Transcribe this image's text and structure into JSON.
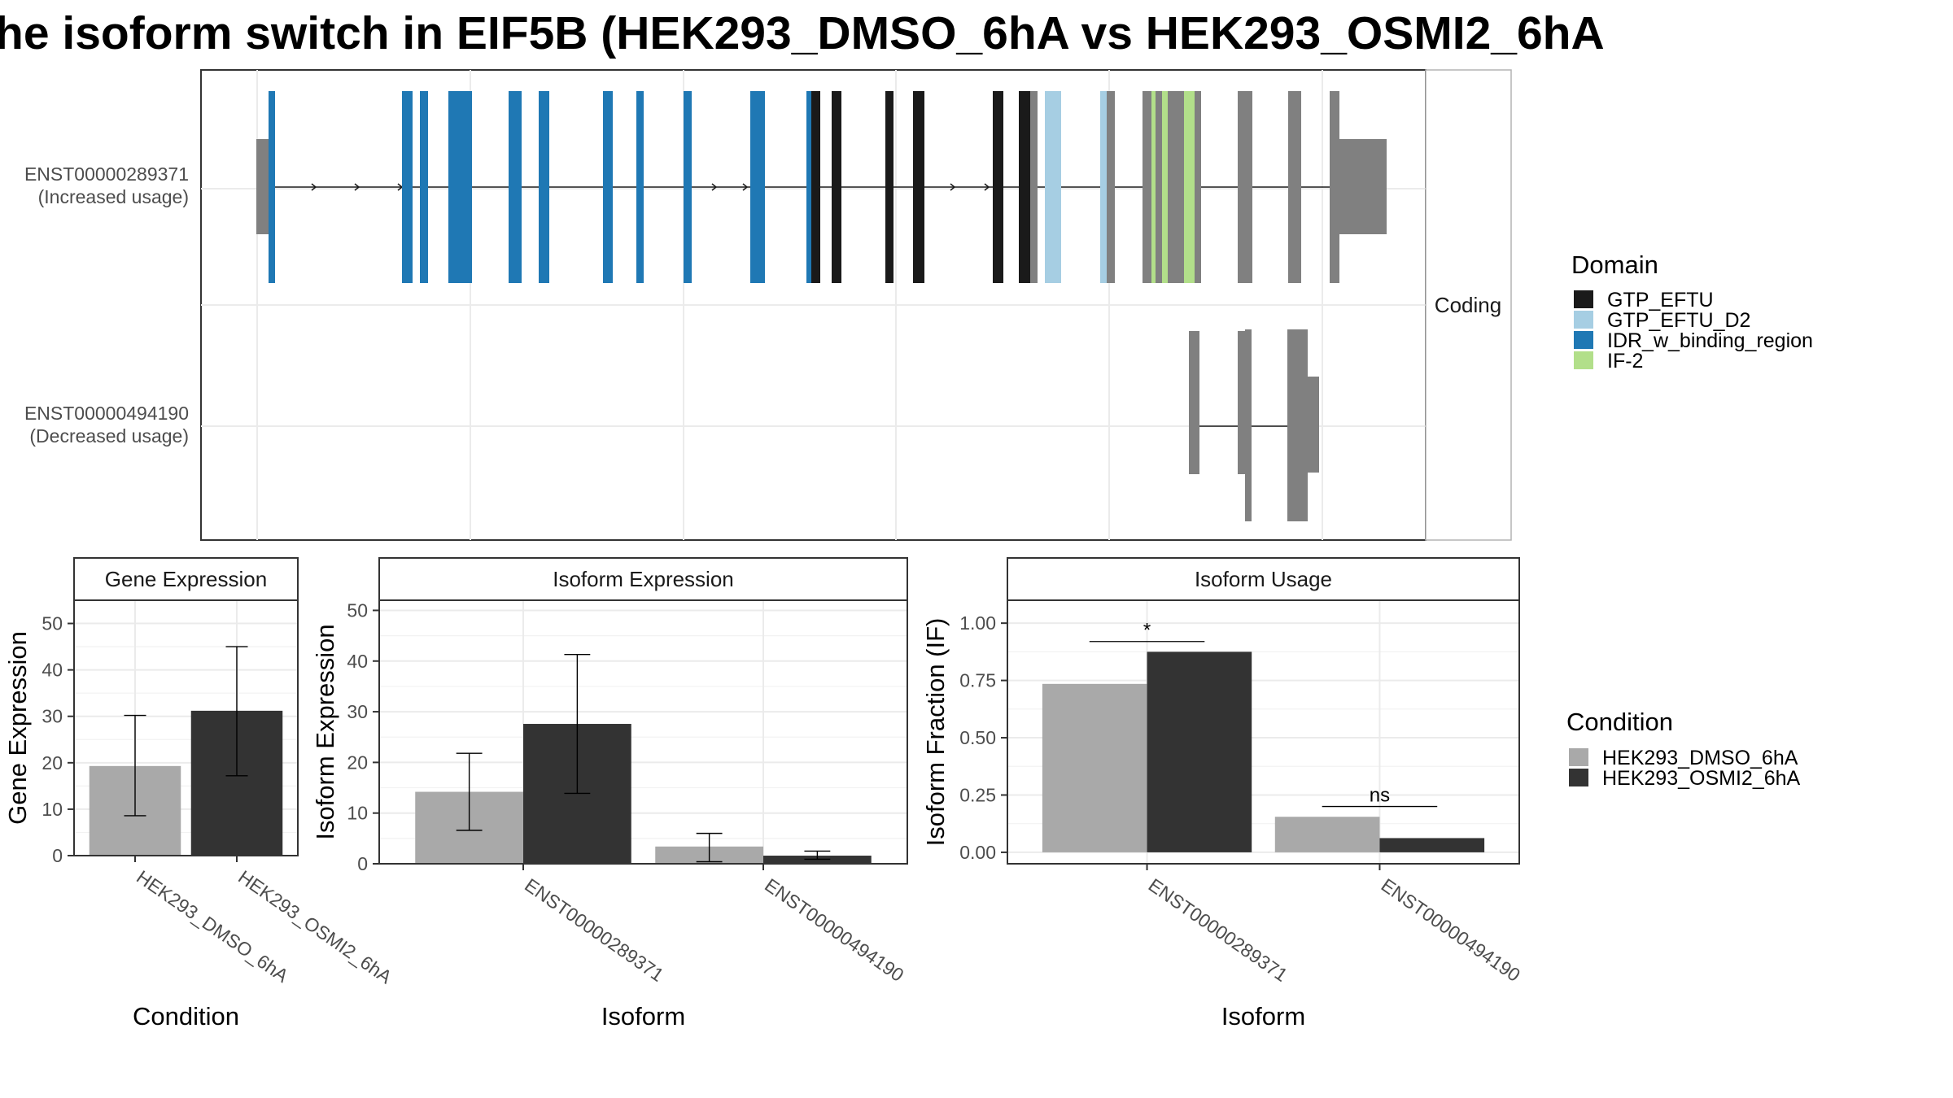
{
  "title": "he isoform switch in EIF5B (HEK293_DMSO_6hA vs HEK293_OSMI2_6hA",
  "colors": {
    "GTP_EFTU": "#1a1a1a",
    "GTP_EFTU_D2": "#a6cee3",
    "IDR_w_binding_region": "#1f78b4",
    "IF-2": "#b2df8a",
    "noncoding_exon": "#808080",
    "HEK293_DMSO_6hA": "#a9a9a9",
    "HEK293_OSMI2_6hA": "#333333"
  },
  "structure": {
    "facet_label": "Coding",
    "transcripts": [
      {
        "id": "ENST00000289371",
        "label_line1": "ENST00000289371",
        "label_line2": "(Increased usage)"
      },
      {
        "id": "ENST00000494190",
        "label_line1": "ENST00000494190",
        "label_line2": "(Decreased usage)"
      }
    ]
  },
  "domain_legend": {
    "title": "Domain",
    "items": [
      "GTP_EFTU",
      "GTP_EFTU_D2",
      "IDR_w_binding_region",
      "IF-2"
    ]
  },
  "condition_legend": {
    "title": "Condition",
    "items": [
      "HEK293_DMSO_6hA",
      "HEK293_OSMI2_6hA"
    ]
  },
  "chart_data": [
    {
      "type": "bar",
      "panel": "Gene Expression",
      "title": "Gene Expression",
      "xlabel": "Condition",
      "ylabel": "Gene Expression",
      "categories": [
        "HEK293_DMSO_6hA",
        "HEK293_OSMI2_6hA"
      ],
      "values": [
        19.3,
        31.2
      ],
      "error_low": [
        8.6,
        17.2
      ],
      "error_high": [
        30.2,
        45.0
      ],
      "ylim": [
        0,
        55
      ],
      "yticks": [
        0,
        10,
        20,
        30,
        40,
        50
      ],
      "grid": true
    },
    {
      "type": "bar",
      "panel": "Isoform Expression",
      "title": "Isoform Expression",
      "xlabel": "Isoform",
      "ylabel": "Isoform Expression",
      "categories": [
        "ENST00000289371",
        "ENST00000494190"
      ],
      "series": [
        {
          "name": "HEK293_DMSO_6hA",
          "values": [
            14.2,
            3.4
          ],
          "error_low": [
            6.6,
            0.4
          ],
          "error_high": [
            21.8,
            6.0
          ]
        },
        {
          "name": "HEK293_OSMI2_6hA",
          "values": [
            27.6,
            1.6
          ],
          "error_low": [
            13.9,
            0.9
          ],
          "error_high": [
            41.3,
            2.5
          ]
        }
      ],
      "ylim": [
        0,
        52
      ],
      "yticks": [
        0,
        10,
        20,
        30,
        40,
        50
      ],
      "grid": true
    },
    {
      "type": "bar",
      "panel": "Isoform Usage",
      "title": "Isoform Usage",
      "xlabel": "Isoform",
      "ylabel": "Isoform Fraction (IF)",
      "categories": [
        "ENST00000289371",
        "ENST00000494190"
      ],
      "series": [
        {
          "name": "HEK293_DMSO_6hA",
          "values": [
            0.735,
            0.155
          ]
        },
        {
          "name": "HEK293_OSMI2_6hA",
          "values": [
            0.875,
            0.062
          ]
        }
      ],
      "ytick_labels": [
        "0.00",
        "0.25",
        "0.50",
        "0.75",
        "1.00"
      ],
      "yticks": [
        0,
        0.25,
        0.5,
        0.75,
        1.0
      ],
      "ylim": [
        -0.05,
        1.1
      ],
      "significance": [
        {
          "category": "ENST00000289371",
          "label": "*",
          "y": 0.92
        },
        {
          "category": "ENST00000494190",
          "label": "ns",
          "y": 0.2
        }
      ],
      "grid": true
    }
  ]
}
